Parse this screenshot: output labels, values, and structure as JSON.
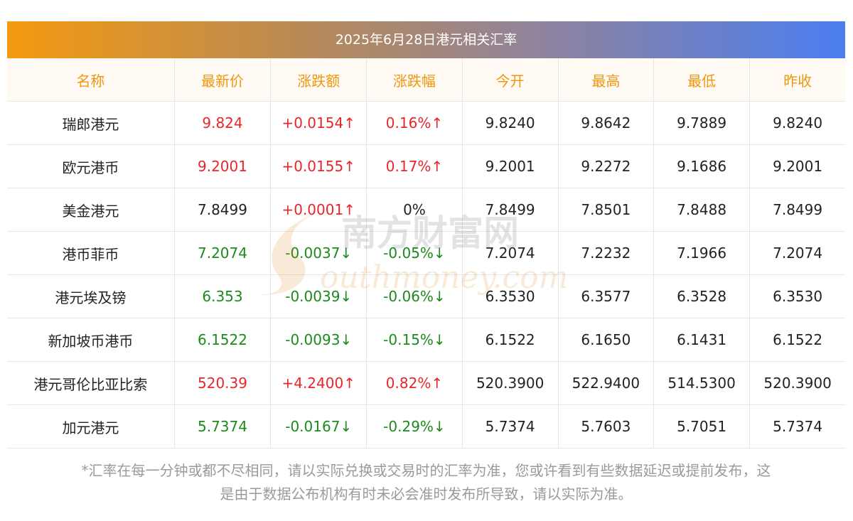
{
  "title": "2025年6月28日港元相关汇率",
  "columns": [
    "名称",
    "最新价",
    "涨跌额",
    "涨跌幅",
    "今开",
    "最高",
    "最低",
    "昨收"
  ],
  "rows": [
    {
      "name": "瑞郎港元",
      "latest": "9.824",
      "change": "+0.0154↑",
      "pct": "0.16%↑",
      "open": "9.8240",
      "high": "9.8642",
      "low": "9.7889",
      "prev": "9.8240",
      "trend": "up"
    },
    {
      "name": "欧元港币",
      "latest": "9.2001",
      "change": "+0.0155↑",
      "pct": "0.17%↑",
      "open": "9.2001",
      "high": "9.2272",
      "low": "9.1686",
      "prev": "9.2001",
      "trend": "up"
    },
    {
      "name": "美金港元",
      "latest": "7.8499",
      "change": "+0.0001↑",
      "pct": "0%",
      "open": "7.8499",
      "high": "7.8501",
      "low": "7.8488",
      "prev": "7.8499",
      "trend": "flat"
    },
    {
      "name": "港币菲币",
      "latest": "7.2074",
      "change": "-0.0037↓",
      "pct": "-0.05%↓",
      "open": "7.2074",
      "high": "7.2232",
      "low": "7.1966",
      "prev": "7.2074",
      "trend": "down"
    },
    {
      "name": "港元埃及镑",
      "latest": "6.353",
      "change": "-0.0039↓",
      "pct": "-0.06%↓",
      "open": "6.3530",
      "high": "6.3577",
      "low": "6.3528",
      "prev": "6.3530",
      "trend": "down"
    },
    {
      "name": "新加坡币港币",
      "latest": "6.1522",
      "change": "-0.0093↓",
      "pct": "-0.15%↓",
      "open": "6.1522",
      "high": "6.1650",
      "low": "6.1431",
      "prev": "6.1522",
      "trend": "down"
    },
    {
      "name": "港元哥伦比亚比索",
      "latest": "520.39",
      "change": "+4.2400↑",
      "pct": "0.82%↑",
      "open": "520.3900",
      "high": "522.9400",
      "low": "514.5300",
      "prev": "520.3900",
      "trend": "up"
    },
    {
      "name": "加元港元",
      "latest": "5.7374",
      "change": "-0.0167↓",
      "pct": "-0.29%↓",
      "open": "5.7374",
      "high": "5.7603",
      "low": "5.7051",
      "prev": "5.7374",
      "trend": "down"
    }
  ],
  "note_line1": "*汇率在每一分钟或都不尽相同，请以实际兑换或交易时的汇率为准，您或许看到有些数据延迟或提前发布，这",
  "note_line2": "是由于数据公布机构有时未必会准时发布所导致，请以实际为准。",
  "watermark": {
    "cn": "南方财富网",
    "en": "outhmoney.com"
  },
  "colors": {
    "up": "#e8262a",
    "down": "#1c8a1c",
    "header_text": "#f0960f",
    "gradient_start": "#f59a10",
    "gradient_end": "#4b7ef0"
  }
}
